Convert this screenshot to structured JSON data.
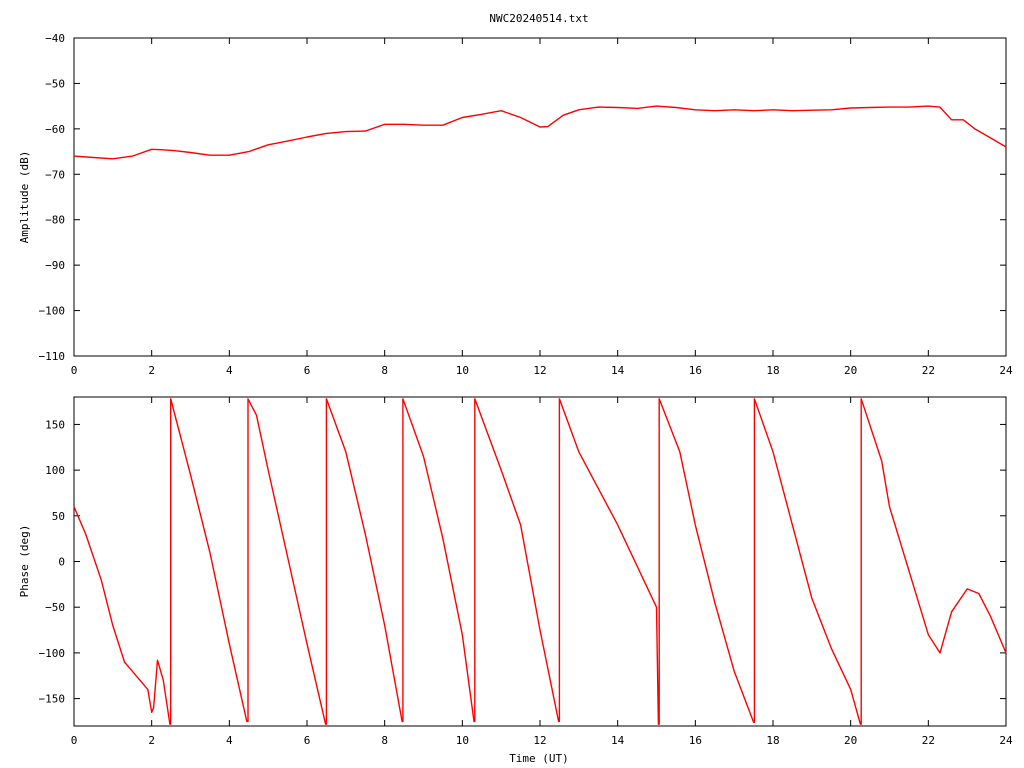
{
  "title": "NWC20240514.txt",
  "colors": {
    "series": "#ff0000",
    "axes": "#000000",
    "background": "#ffffff"
  },
  "chart_data": [
    {
      "type": "line",
      "title": "NWC20240514.txt",
      "xlabel": "",
      "ylabel": "Amplitude (dB)",
      "xlim": [
        0,
        24
      ],
      "ylim": [
        -110,
        -40
      ],
      "xticks": [
        "0",
        "2",
        "4",
        "6",
        "8",
        "10",
        "12",
        "14",
        "16",
        "18",
        "20",
        "22",
        "24"
      ],
      "yticks": [
        "-110",
        "-100",
        "-90",
        "-80",
        "-70",
        "-60",
        "-50",
        "-40"
      ],
      "grid": false,
      "legend": "none",
      "series": [
        {
          "x": [
            0,
            0.5,
            1.0,
            1.5,
            2.0,
            2.3,
            2.6,
            3.0,
            3.5,
            4.0,
            4.5,
            5.0,
            5.5,
            6.0,
            6.5,
            7.0,
            7.5,
            8.0,
            8.5,
            9.0,
            9.5,
            10.0,
            10.5,
            11.0,
            11.5,
            12.0,
            12.2,
            12.6,
            13.0,
            13.5,
            14.0,
            14.5,
            15.0,
            15.5,
            16.0,
            16.5,
            17.0,
            17.5,
            18.0,
            18.5,
            19.0,
            19.5,
            20.0,
            20.5,
            21.0,
            21.5,
            22.0,
            22.3,
            22.6,
            22.9,
            23.2,
            23.6,
            24.0
          ],
          "y": [
            -66,
            -66.3,
            -66.6,
            -66,
            -64.5,
            -64.6,
            -64.8,
            -65.2,
            -65.8,
            -65.8,
            -65,
            -63.5,
            -62.7,
            -61.8,
            -61,
            -60.6,
            -60.5,
            -59,
            -59,
            -59.2,
            -59.2,
            -57.5,
            -56.8,
            -56,
            -57.5,
            -59.6,
            -59.5,
            -57,
            -55.8,
            -55.2,
            -55.3,
            -55.5,
            -55,
            -55.3,
            -55.8,
            -56,
            -55.8,
            -56,
            -55.8,
            -56,
            -55.9,
            -55.8,
            -55.4,
            -55.3,
            -55.2,
            -55.2,
            -55,
            -55.2,
            -58,
            -58,
            -60,
            -62,
            -64
          ]
        }
      ]
    },
    {
      "type": "line",
      "title": "",
      "xlabel": "Time (UT)",
      "ylabel": "Phase (deg)",
      "xlim": [
        0,
        24
      ],
      "ylim": [
        -180,
        180
      ],
      "xticks": [
        "0",
        "2",
        "4",
        "6",
        "8",
        "10",
        "12",
        "14",
        "16",
        "18",
        "20",
        "22",
        "24"
      ],
      "yticks": [
        "-150",
        "-100",
        "-50",
        "0",
        "50",
        "100",
        "150"
      ],
      "grid": false,
      "legend": "none",
      "phase_wraps": true,
      "series": [
        {
          "x": [
            0,
            0.3,
            0.7,
            1.0,
            1.3,
            1.6,
            1.9,
            2.0,
            2.05,
            2.15,
            2.3,
            2.47,
            2.49,
            2.6,
            3.0,
            3.5,
            4.0,
            4.45,
            4.48,
            4.7,
            5.0,
            5.5,
            6.0,
            6.48,
            6.5,
            7.0,
            7.5,
            8.0,
            8.45,
            8.47,
            9.0,
            9.5,
            10.0,
            10.3,
            10.32,
            11.0,
            11.5,
            12.0,
            12.48,
            12.5,
            13.0,
            14.0,
            15.0,
            15.05,
            15.07,
            15.6,
            16.0,
            16.5,
            17.0,
            17.5,
            17.52,
            18.0,
            18.5,
            19.0,
            19.5,
            20.0,
            20.25,
            20.27,
            20.8,
            21.0,
            21.5,
            22.0,
            22.3,
            22.6,
            23.0,
            23.3,
            23.6,
            24.0
          ],
          "y": [
            60,
            30,
            -20,
            -70,
            -110,
            -125,
            -140,
            -165,
            -160,
            -108,
            -130,
            -178,
            178,
            160,
            95,
            10,
            -90,
            -175,
            178,
            160,
            100,
            5,
            -90,
            -178,
            178,
            120,
            30,
            -70,
            -175,
            178,
            115,
            25,
            -80,
            -175,
            178,
            100,
            40,
            -75,
            -175,
            178,
            120,
            40,
            -50,
            -178,
            178,
            120,
            40,
            -45,
            -120,
            -176,
            178,
            120,
            40,
            -40,
            -95,
            -140,
            -178,
            178,
            110,
            60,
            -10,
            -80,
            -100,
            -55,
            -30,
            -35,
            -60,
            -100
          ]
        }
      ]
    }
  ]
}
